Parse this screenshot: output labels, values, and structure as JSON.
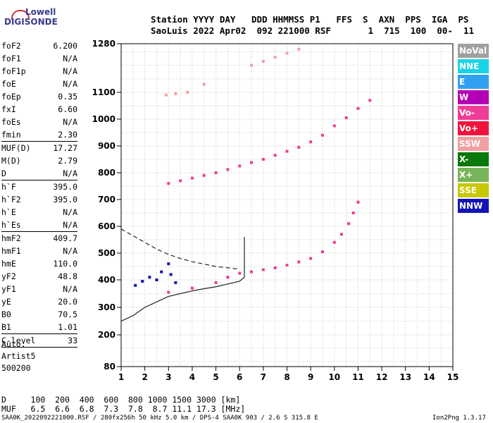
{
  "logo": {
    "line1": "Lowell",
    "line2": "DIGISONDE"
  },
  "header": {
    "line1": "Station YYYY DAY   DDD HHMMSS P1   FFS  S  AXN  PPS  IGA  PS",
    "line2": "SaoLuis 2022 Apr02  092 221000 RSF       1  715  100  00-  11"
  },
  "params": [
    {
      "k": "foF2",
      "v": "6.200"
    },
    {
      "k": "foF1",
      "v": "N/A"
    },
    {
      "k": "foF1p",
      "v": "N/A"
    },
    {
      "k": "foE",
      "v": "N/A"
    },
    {
      "k": "foEp",
      "v": "0.35"
    },
    {
      "k": "fxI",
      "v": "6.60"
    },
    {
      "k": "foEs",
      "v": "N/A"
    },
    {
      "k": "fmin",
      "v": "2.30",
      "sep": true
    },
    {
      "k": "MUF(D)",
      "v": "17.27"
    },
    {
      "k": "M(D)",
      "v": "2.79"
    },
    {
      "k": "D",
      "v": "N/A",
      "sep": true
    },
    {
      "k": "h`F",
      "v": "395.0"
    },
    {
      "k": "h`F2",
      "v": "395.0"
    },
    {
      "k": "h`E",
      "v": "N/A"
    },
    {
      "k": "h`Es",
      "v": "N/A",
      "sep": true
    },
    {
      "k": "hmF2",
      "v": "409.7"
    },
    {
      "k": "hmF1",
      "v": "N/A"
    },
    {
      "k": "hmE",
      "v": "110.0"
    },
    {
      "k": "yF2",
      "v": "48.8"
    },
    {
      "k": "yF1",
      "v": "N/A"
    },
    {
      "k": "yE",
      "v": "20.0"
    },
    {
      "k": "B0",
      "v": "70.5"
    },
    {
      "k": "B1",
      "v": "1.01",
      "sep": true
    },
    {
      "k": "C-level",
      "v": "33",
      "sep": true
    }
  ],
  "auto": {
    "line1": "Auto:",
    "line2": "Artist5",
    "line3": "500200"
  },
  "legend": [
    {
      "label": "NoVal",
      "color": "#a0a0a0"
    },
    {
      "label": "NNE",
      "color": "#19d3e6"
    },
    {
      "label": "E",
      "color": "#32a0f0"
    },
    {
      "label": "W",
      "color": "#b400b4"
    },
    {
      "label": "Vo-",
      "color": "#f03c96"
    },
    {
      "label": "Vo+",
      "color": "#f0143c"
    },
    {
      "label": "SSW",
      "color": "#f0a0a0"
    },
    {
      "label": "X-",
      "color": "#0a780a"
    },
    {
      "label": "X+",
      "color": "#78b45a"
    },
    {
      "label": "SSE",
      "color": "#c8c800"
    },
    {
      "label": "NNW",
      "color": "#1414b4"
    }
  ],
  "bottom": {
    "line1": "D     100  200  400  600  800 1000 1500 3000 [km]",
    "line2": "MUF   6.5  6.6  6.8  7.3  7.8  8.7 11.1 17.3 [MHz]"
  },
  "footer": {
    "left": "SAA0K_2022092221000.RSF / 280fx256h 50 kHz 5.0 km / DPS-4 SAA0K 903 / 2.6 S 315.8 E",
    "right": "Ion2Png 1.3.17"
  },
  "chart_data": {
    "type": "scatter",
    "title": "",
    "xlabel": "",
    "ylabel": "",
    "xlim": [
      1,
      15
    ],
    "ylim": [
      80,
      1280
    ],
    "x_ticks": [
      1,
      2,
      3,
      4,
      5,
      6,
      7,
      8,
      9,
      10,
      11,
      12,
      13,
      14,
      15
    ],
    "y_ticks": [
      80,
      200,
      300,
      400,
      500,
      600,
      700,
      800,
      900,
      1000,
      1100,
      1280
    ],
    "grid": true,
    "traces": [
      {
        "name": "F2 trace",
        "color": "#f03c96",
        "x": [
          3.0,
          4.0,
          5.0,
          5.5,
          6.0,
          6.5,
          7.0,
          7.5,
          8.0,
          8.5,
          9.0,
          9.5,
          10.0,
          10.3,
          10.6,
          10.8,
          11.0
        ],
        "y": [
          355,
          370,
          390,
          410,
          425,
          430,
          438,
          445,
          455,
          467,
          480,
          505,
          540,
          570,
          610,
          650,
          690
        ]
      },
      {
        "name": "2F trace",
        "color": "#f03c96",
        "x": [
          3.0,
          3.5,
          4.0,
          4.5,
          5.0,
          5.5,
          6.0,
          6.5,
          7.0,
          7.5,
          8.0,
          8.5,
          9.0,
          9.5,
          10.0,
          10.5,
          11.0,
          11.5
        ],
        "y": [
          760,
          770,
          780,
          790,
          800,
          812,
          825,
          838,
          850,
          865,
          880,
          895,
          915,
          940,
          975,
          1005,
          1040,
          1070
        ]
      },
      {
        "name": "weak upper echoes",
        "color": "#f0a0a0",
        "x": [
          2.9,
          3.3,
          3.8,
          4.5,
          6.5,
          7.0,
          7.5,
          8.0,
          8.5
        ],
        "y": [
          1090,
          1095,
          1100,
          1130,
          1200,
          1215,
          1230,
          1245,
          1260
        ]
      },
      {
        "name": "low spread cluster",
        "color": "#1414b4",
        "x": [
          1.6,
          1.9,
          2.2,
          2.5,
          2.7,
          3.0,
          3.1,
          3.3
        ],
        "y": [
          380,
          395,
          410,
          400,
          430,
          460,
          420,
          390
        ]
      }
    ],
    "profiles": [
      {
        "name": "solid profile",
        "style": "solid",
        "x": [
          1.0,
          1.5,
          2.0,
          2.5,
          3.0,
          3.5,
          4.0,
          4.5,
          5.0,
          5.5,
          6.0,
          6.2,
          6.2,
          6.2
        ],
        "y": [
          250,
          270,
          300,
          320,
          340,
          350,
          360,
          368,
          375,
          385,
          395,
          410,
          480,
          560
        ]
      },
      {
        "name": "dashed profile",
        "style": "dashed",
        "x": [
          1.0,
          1.5,
          2.0,
          2.5,
          3.0,
          3.5,
          4.0,
          5.0,
          6.0
        ],
        "y": [
          590,
          565,
          540,
          515,
          495,
          480,
          468,
          450,
          440
        ]
      }
    ]
  }
}
